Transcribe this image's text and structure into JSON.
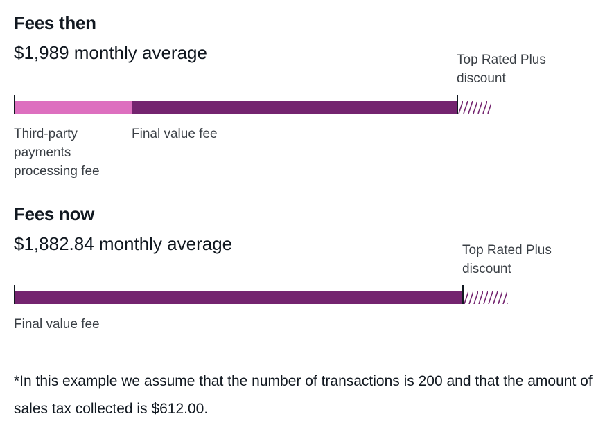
{
  "colors": {
    "processing_fee": "#dd6fbf",
    "final_value_fee": "#74246f",
    "discount_hatch": "#74246f",
    "text_primary": "#111820",
    "text_secondary": "#3a3f45"
  },
  "fees_then": {
    "heading": "Fees then",
    "amount": "$1,989 monthly average",
    "discount_label": "Top Rated Plus discount",
    "segments": [
      {
        "label": "Third-party payments processing fee",
        "share": 0.266
      },
      {
        "label": "Final value fee",
        "share": 0.734
      }
    ]
  },
  "fees_now": {
    "heading": "Fees now",
    "amount": "$1,882.84 monthly average",
    "discount_label": "Top Rated Plus discount",
    "segments": [
      {
        "label": "Final value fee",
        "share": 1.0
      }
    ]
  },
  "footnote": "*In this example we assume that the number of transactions is 200 and that the amount of sales tax collected is $612.00."
}
